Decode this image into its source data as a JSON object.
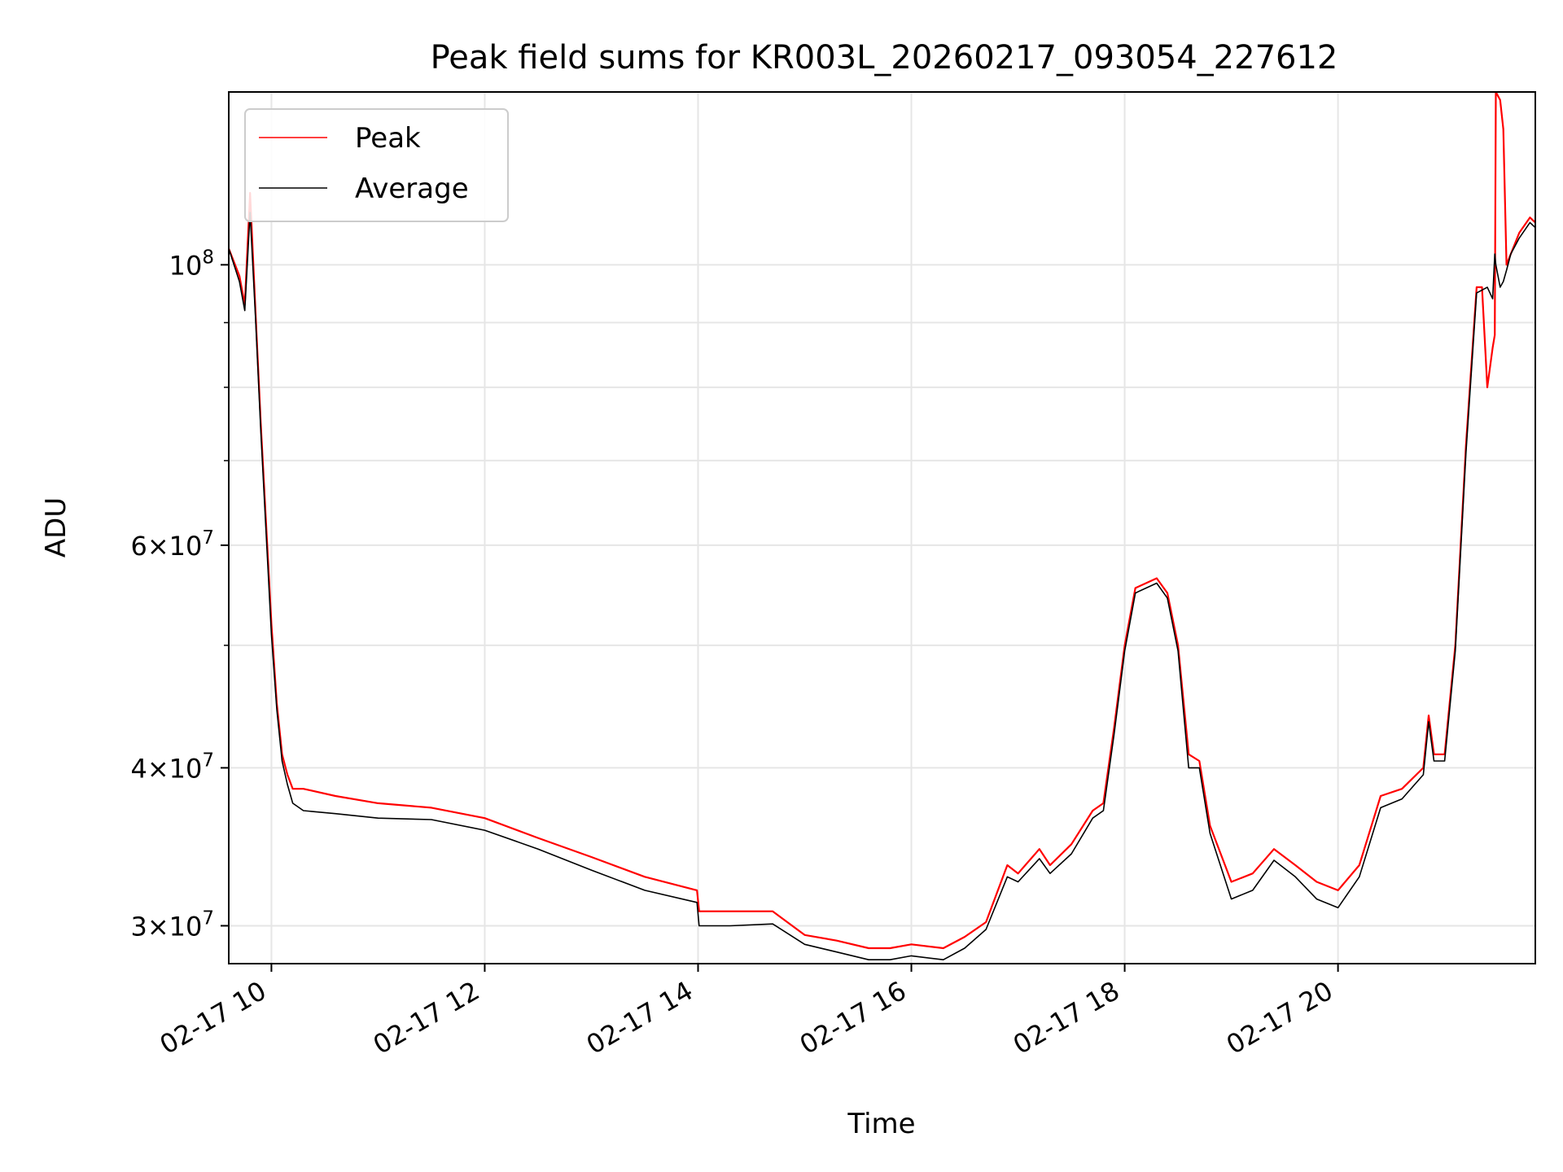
{
  "chart_data": {
    "type": "line",
    "title": "Peak field sums for KR003L_20260217_093054_227612",
    "xlabel": "Time",
    "ylabel": "ADU",
    "yscale": "log",
    "xlim": [
      9.6,
      21.85
    ],
    "ylim": [
      28000000,
      137000000
    ],
    "grid": true,
    "legend_position": "top-left",
    "x_ticks": [
      {
        "value": 10,
        "label": "02-17 10"
      },
      {
        "value": 12,
        "label": "02-17 12"
      },
      {
        "value": 14,
        "label": "02-17 14"
      },
      {
        "value": 16,
        "label": "02-17 16"
      },
      {
        "value": 18,
        "label": "02-17 18"
      },
      {
        "value": 20,
        "label": "02-17 20"
      }
    ],
    "y_major_ticks": [
      {
        "value": 30000000,
        "base": "3",
        "exp": "7"
      },
      {
        "value": 40000000,
        "base": "4",
        "exp": "7"
      },
      {
        "value": 60000000,
        "base": "6",
        "exp": "7"
      },
      {
        "value": 100000000,
        "base": "",
        "exp": "8"
      }
    ],
    "y_minor_grid": [
      50000000,
      70000000,
      80000000,
      90000000
    ],
    "y_tick_times": "×",
    "y_tick_ten": "10",
    "series": [
      {
        "name": "Peak",
        "color": "#ff0000",
        "x": [
          9.6,
          9.7,
          9.75,
          9.8,
          9.85,
          9.9,
          10.0,
          10.05,
          10.1,
          10.15,
          10.2,
          10.3,
          10.6,
          11.0,
          11.5,
          12.0,
          12.5,
          13.0,
          13.5,
          13.99,
          14.01,
          14.3,
          14.7,
          15.0,
          15.3,
          15.6,
          15.8,
          16.0,
          16.3,
          16.5,
          16.7,
          16.9,
          17.0,
          17.2,
          17.3,
          17.5,
          17.7,
          17.8,
          17.9,
          18.0,
          18.1,
          18.3,
          18.4,
          18.5,
          18.6,
          18.7,
          18.8,
          19.0,
          19.2,
          19.4,
          19.6,
          19.8,
          20.0,
          20.2,
          20.4,
          20.6,
          20.8,
          20.85,
          20.9,
          21.0,
          21.1,
          21.2,
          21.3,
          21.35,
          21.4,
          21.45,
          21.47,
          21.48,
          21.52,
          21.55,
          21.58,
          21.62,
          21.7,
          21.8,
          21.85
        ],
        "y": [
          103000000,
          98000000,
          93000000,
          114000000,
          92000000,
          75000000,
          52000000,
          45000000,
          41000000,
          39500000,
          38500000,
          38500000,
          38000000,
          37500000,
          37200000,
          36500000,
          35200000,
          34000000,
          32800000,
          32000000,
          30800000,
          30800000,
          30800000,
          29500000,
          29200000,
          28800000,
          28800000,
          29000000,
          28800000,
          29400000,
          30200000,
          33500000,
          33000000,
          34500000,
          33500000,
          34800000,
          37000000,
          37500000,
          43000000,
          50000000,
          55500000,
          56500000,
          55000000,
          50000000,
          41000000,
          40500000,
          36000000,
          32500000,
          33000000,
          34500000,
          33500000,
          32500000,
          32000000,
          33500000,
          38000000,
          38500000,
          40000000,
          44000000,
          41000000,
          41000000,
          50000000,
          72000000,
          96000000,
          96000000,
          80000000,
          86000000,
          88000000,
          137000000,
          135000000,
          128000000,
          100000000,
          102000000,
          106000000,
          109000000,
          108000000
        ]
      },
      {
        "name": "Average",
        "color": "#000000",
        "x": [
          9.6,
          9.7,
          9.75,
          9.8,
          9.85,
          9.9,
          10.0,
          10.05,
          10.1,
          10.15,
          10.2,
          10.3,
          10.6,
          11.0,
          11.5,
          12.0,
          12.5,
          13.0,
          13.5,
          13.99,
          14.01,
          14.3,
          14.7,
          15.0,
          15.3,
          15.6,
          15.8,
          16.0,
          16.3,
          16.5,
          16.7,
          16.9,
          17.0,
          17.2,
          17.3,
          17.5,
          17.7,
          17.8,
          17.9,
          18.0,
          18.1,
          18.3,
          18.4,
          18.5,
          18.6,
          18.7,
          18.8,
          19.0,
          19.2,
          19.4,
          19.6,
          19.8,
          20.0,
          20.2,
          20.4,
          20.6,
          20.8,
          20.85,
          20.9,
          21.0,
          21.1,
          21.2,
          21.3,
          21.35,
          21.4,
          21.45,
          21.47,
          21.48,
          21.52,
          21.55,
          21.58,
          21.62,
          21.7,
          21.8,
          21.85
        ],
        "y": [
          103000000,
          97000000,
          92000000,
          110000000,
          91000000,
          74000000,
          51000000,
          44500000,
          40500000,
          38800000,
          37500000,
          37000000,
          36800000,
          36500000,
          36400000,
          35700000,
          34500000,
          33200000,
          32000000,
          31300000,
          30000000,
          30000000,
          30100000,
          29000000,
          28600000,
          28200000,
          28200000,
          28400000,
          28200000,
          28800000,
          29800000,
          32800000,
          32500000,
          33900000,
          33000000,
          34200000,
          36500000,
          37000000,
          42500000,
          49500000,
          55000000,
          56000000,
          54500000,
          49500000,
          40000000,
          40000000,
          35500000,
          31500000,
          32000000,
          33800000,
          32800000,
          31500000,
          31000000,
          32800000,
          37200000,
          37800000,
          39500000,
          43500000,
          40500000,
          40500000,
          49500000,
          71000000,
          95000000,
          95500000,
          96000000,
          94000000,
          102000000,
          100000000,
          96000000,
          97000000,
          99000000,
          102000000,
          105000000,
          108000000,
          107000000
        ]
      }
    ]
  }
}
